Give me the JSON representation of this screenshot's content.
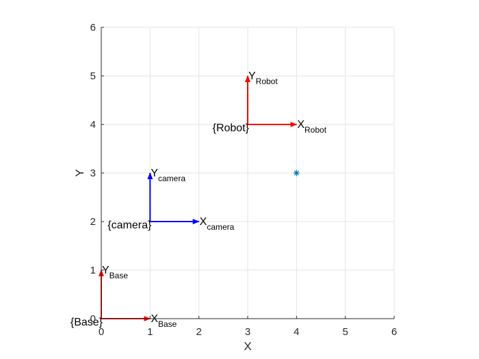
{
  "chart_data": {
    "type": "scatter",
    "title": "",
    "xlabel": "X",
    "ylabel": "Y",
    "xlim": [
      0,
      6
    ],
    "ylim": [
      0,
      6
    ],
    "xticks": [
      "0",
      "1",
      "2",
      "3",
      "4",
      "5",
      "6"
    ],
    "yticks": [
      "0",
      "1",
      "2",
      "3",
      "4",
      "5",
      "6"
    ],
    "grid": true,
    "frames": [
      {
        "id": "base",
        "label": "{Base}",
        "origin": [
          0,
          0
        ],
        "x_end": [
          1,
          0
        ],
        "y_end": [
          0,
          1
        ],
        "x_axis_main": "X",
        "x_axis_sub": "Base",
        "y_axis_main": "Y",
        "y_axis_sub": "Base",
        "color": "#ff0000"
      },
      {
        "id": "camera",
        "label": "{camera}",
        "origin": [
          1,
          2
        ],
        "x_end": [
          2,
          2
        ],
        "y_end": [
          1,
          3
        ],
        "x_axis_main": "X",
        "x_axis_sub": "camera",
        "y_axis_main": "Y",
        "y_axis_sub": "camera",
        "color": "#0000ff"
      },
      {
        "id": "robot",
        "label": "{Robot}",
        "origin": [
          3,
          4
        ],
        "x_end": [
          4,
          4
        ],
        "y_end": [
          3,
          5
        ],
        "x_axis_main": "X",
        "x_axis_sub": "Robot",
        "y_axis_main": "Y",
        "y_axis_sub": "Robot",
        "color": "#ff0000"
      }
    ],
    "points": [
      {
        "x": 4,
        "y": 3,
        "marker": "asterisk",
        "color": "#0072bd"
      }
    ]
  }
}
